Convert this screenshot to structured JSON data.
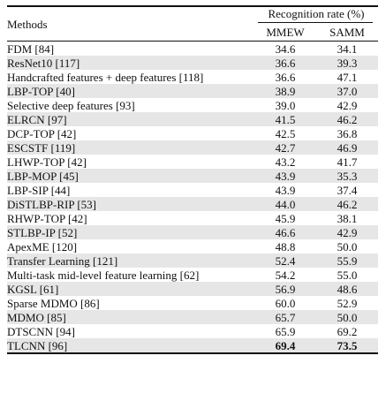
{
  "table": {
    "header": {
      "methods": "Methods",
      "group": "Recognition rate (%)",
      "col1": "MMEW",
      "col2": "SAMM"
    },
    "rows": [
      {
        "method": "FDM [84]",
        "mmew": "34.6",
        "samm": "34.1"
      },
      {
        "method": "ResNet10 [117]",
        "mmew": "36.6",
        "samm": "39.3"
      },
      {
        "method": "Handcrafted features + deep features [118]",
        "mmew": "36.6",
        "samm": "47.1"
      },
      {
        "method": "LBP-TOP [40]",
        "mmew": "38.9",
        "samm": "37.0"
      },
      {
        "method": "Selective deep features [93]",
        "mmew": "39.0",
        "samm": "42.9"
      },
      {
        "method": "ELRCN [97]",
        "mmew": "41.5",
        "samm": "46.2"
      },
      {
        "method": "DCP-TOP [42]",
        "mmew": "42.5",
        "samm": "36.8"
      },
      {
        "method": "ESCSTF [119]",
        "mmew": "42.7",
        "samm": "46.9"
      },
      {
        "method": "LHWP-TOP [42]",
        "mmew": "43.2",
        "samm": "41.7"
      },
      {
        "method": "LBP-MOP [45]",
        "mmew": "43.9",
        "samm": "35.3"
      },
      {
        "method": "LBP-SIP [44]",
        "mmew": "43.9",
        "samm": "37.4"
      },
      {
        "method": "DiSTLBP-RIP [53]",
        "mmew": "44.0",
        "samm": "46.2"
      },
      {
        "method": "RHWP-TOP [42]",
        "mmew": "45.9",
        "samm": "38.1"
      },
      {
        "method": "STLBP-IP [52]",
        "mmew": "46.6",
        "samm": "42.9"
      },
      {
        "method": "ApexME [120]",
        "mmew": "48.8",
        "samm": "50.0"
      },
      {
        "method": "Transfer Learning [121]",
        "mmew": "52.4",
        "samm": "55.9"
      },
      {
        "method": "Multi-task mid-level feature learning [62]",
        "mmew": "54.2",
        "samm": "55.0"
      },
      {
        "method": "KGSL [61]",
        "mmew": "56.9",
        "samm": "48.6"
      },
      {
        "method": "Sparse MDMO [86]",
        "mmew": "60.0",
        "samm": "52.9"
      },
      {
        "method": "MDMO [85]",
        "mmew": "65.7",
        "samm": "50.0"
      },
      {
        "method": "DTSCNN [94]",
        "mmew": "65.9",
        "samm": "69.2"
      },
      {
        "method": "TLCNN [96]",
        "mmew": "69.4",
        "samm": "73.5"
      }
    ],
    "best_row_index": 21,
    "row_shading_color": "#e6e6e6"
  }
}
